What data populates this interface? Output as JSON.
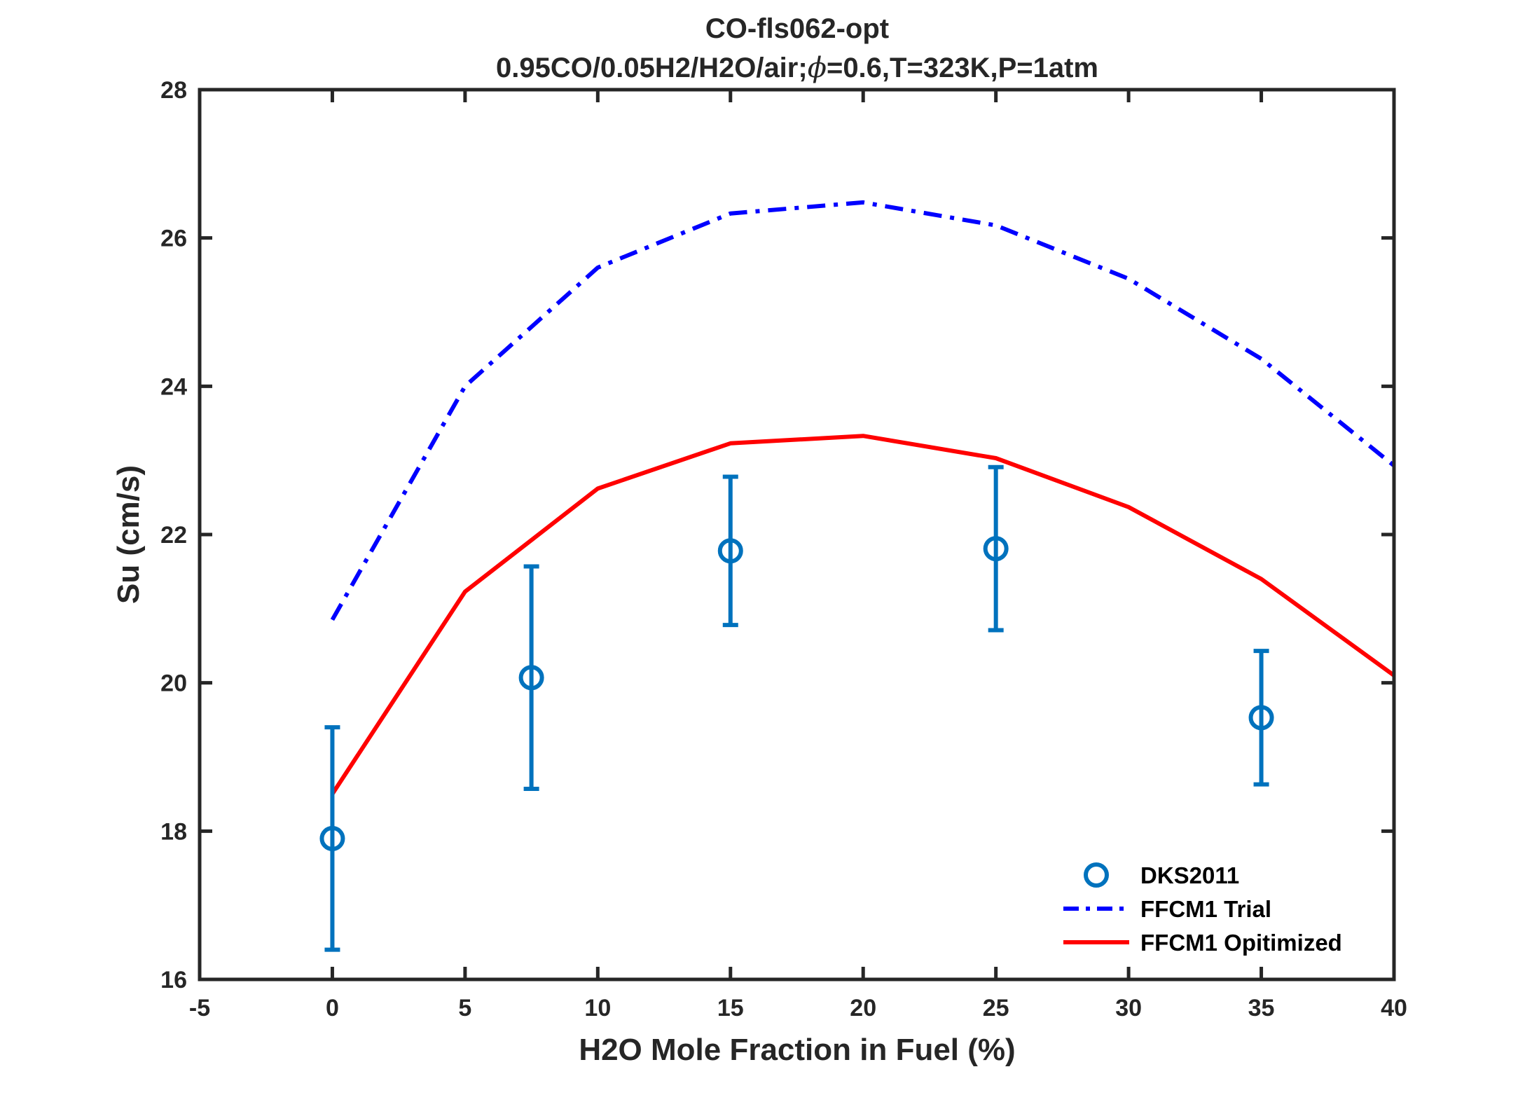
{
  "chart_data": {
    "type": "line",
    "title": "CO-fls062-opt",
    "subtitle_prefix": "0.95CO/0.05H2/H2O/air;",
    "subtitle_phi": "ϕ",
    "subtitle_suffix": "=0.6,T=323K,P=1atm",
    "xlabel": "H2O Mole Fraction in Fuel (%)",
    "ylabel": "Su (cm/s)",
    "xlim": [
      -5,
      40
    ],
    "ylim": [
      16,
      28
    ],
    "xticks": [
      -5,
      0,
      5,
      10,
      15,
      20,
      25,
      30,
      35,
      40
    ],
    "yticks": [
      16,
      18,
      20,
      22,
      24,
      26,
      28
    ],
    "grid": false,
    "legend_position": "bottom-right",
    "series": [
      {
        "name": "DKS2011",
        "kind": "scatter-errorbar",
        "color": "#0072bd",
        "marker": "circle",
        "x": [
          0,
          7.5,
          15,
          25,
          35
        ],
        "y": [
          17.9,
          20.07,
          21.78,
          21.81,
          19.53
        ],
        "yerr_low": [
          16.4,
          18.57,
          20.78,
          20.71,
          18.63
        ],
        "yerr_high": [
          19.4,
          21.57,
          22.78,
          22.91,
          20.43
        ]
      },
      {
        "name": "FFCM1 Trial",
        "kind": "line",
        "color": "#0000ff",
        "dash": "dashdot",
        "x": [
          0,
          5,
          10,
          15,
          20,
          25,
          30,
          35,
          40
        ],
        "y": [
          20.85,
          24.0,
          25.6,
          26.33,
          26.48,
          26.17,
          25.45,
          24.37,
          22.93
        ]
      },
      {
        "name": "FFCM1 Opitimized",
        "kind": "line",
        "color": "#ff0000",
        "dash": "solid",
        "x": [
          0,
          5,
          10,
          15,
          20,
          25,
          30,
          35,
          40
        ],
        "y": [
          18.5,
          21.23,
          22.62,
          23.23,
          23.33,
          23.03,
          22.37,
          21.4,
          20.1
        ]
      }
    ]
  }
}
